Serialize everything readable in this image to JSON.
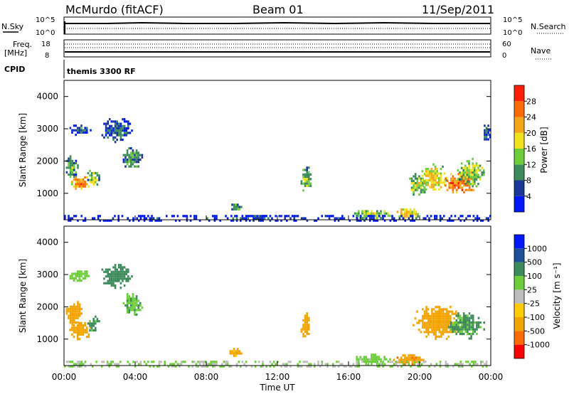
{
  "header": {
    "station": "McMurdo (fitACF)",
    "beam": "Beam 01",
    "date": "11/Sep/2011"
  },
  "panels": {
    "nsky": {
      "left_label": "N.Sky",
      "right_label": "N.Search",
      "top_tick": "10^5",
      "bottom_tick": "10^0"
    },
    "freq": {
      "left_label_1": "Freq.",
      "left_label_2": "[MHz]",
      "right_label": "Nave",
      "left_ticks": [
        "18",
        "8"
      ],
      "right_ticks": [
        "60",
        "0"
      ]
    },
    "cpid": {
      "left_label": "CPID",
      "mode": "themis 3300 RF"
    }
  },
  "colors": {
    "power": [
      "#0018ff",
      "#19379a",
      "#3b8c5a",
      "#6ccf39",
      "#f1e31a",
      "#f5a516",
      "#ff6a00",
      "#ff1e00"
    ],
    "velocity": [
      "#ff0000",
      "#ff6a00",
      "#f4a400",
      "#ffcc00",
      "#bdbdbd",
      "#6ccf39",
      "#3b8c5a",
      "#1c4f9a",
      "#0018ff"
    ]
  },
  "colorbars": {
    "power": {
      "label": "Power [dB]",
      "ticks": [
        "4",
        "8",
        "12",
        "16",
        "20",
        "24",
        "28"
      ]
    },
    "velocity": {
      "label": "Velocity [m s⁻¹]",
      "ticks": [
        "-1000",
        "-500",
        "-100",
        "-25",
        "25",
        "100",
        "500",
        "1000"
      ]
    }
  },
  "chart_data": [
    {
      "type": "heatmap",
      "quantity": "power",
      "ylabel": "Slant Range [km]",
      "yticks": [
        "1000",
        "2000",
        "3000",
        "4000"
      ],
      "ylim": [
        180,
        4500
      ],
      "xlim": [
        0,
        24
      ],
      "blobs": [
        {
          "t": [
            0.0,
            0.8
          ],
          "r": [
            1400,
            2250
          ],
          "v": 12
        },
        {
          "t": [
            0.3,
            1.5
          ],
          "r": [
            1100,
            1600
          ],
          "v": 24
        },
        {
          "t": [
            1.2,
            2.0
          ],
          "r": [
            1200,
            1800
          ],
          "v": 16
        },
        {
          "t": [
            0.2,
            1.5
          ],
          "r": [
            2800,
            3200
          ],
          "v": 8
        },
        {
          "t": [
            2.0,
            3.8
          ],
          "r": [
            2600,
            3400
          ],
          "v": 8
        },
        {
          "t": [
            3.2,
            4.4
          ],
          "r": [
            1700,
            2500
          ],
          "v": 12
        },
        {
          "t": [
            9.2,
            10.0
          ],
          "r": [
            450,
            750
          ],
          "v": 12
        },
        {
          "t": [
            10.5,
            11.5
          ],
          "r": [
            200,
            400
          ],
          "v": 8
        },
        {
          "t": [
            13.2,
            13.9
          ],
          "r": [
            1000,
            1900
          ],
          "v": 14
        },
        {
          "t": [
            16.0,
            18.5
          ],
          "r": [
            200,
            550
          ],
          "v": 16
        },
        {
          "t": [
            18.5,
            20.0
          ],
          "r": [
            200,
            600
          ],
          "v": 20
        },
        {
          "t": [
            19.3,
            20.5
          ],
          "r": [
            900,
            1700
          ],
          "v": 16
        },
        {
          "t": [
            20.0,
            21.5
          ],
          "r": [
            1000,
            2000
          ],
          "v": 20
        },
        {
          "t": [
            21.2,
            23.2
          ],
          "r": [
            1000,
            1700
          ],
          "v": 26
        },
        {
          "t": [
            22.0,
            23.7
          ],
          "r": [
            1200,
            2100
          ],
          "v": 16
        },
        {
          "t": [
            23.5,
            24.0
          ],
          "r": [
            2600,
            3200
          ],
          "v": 8
        },
        {
          "t": [
            0.0,
            24.0
          ],
          "r": [
            180,
            330
          ],
          "v": 6
        }
      ]
    },
    {
      "type": "heatmap",
      "quantity": "velocity",
      "xlabel": "Time UT",
      "xticks": [
        "00:00",
        "04:00",
        "08:00",
        "12:00",
        "16:00",
        "20:00",
        "00:00"
      ],
      "ylabel": "Slant Range [km]",
      "yticks": [
        "1000",
        "2000",
        "3000",
        "4000"
      ],
      "ylim": [
        180,
        4500
      ],
      "xlim": [
        0,
        24
      ],
      "blobs": [
        {
          "t": [
            0.0,
            1.0
          ],
          "r": [
            1400,
            2250
          ],
          "v": -300
        },
        {
          "t": [
            0.3,
            1.6
          ],
          "r": [
            1000,
            1600
          ],
          "v": -300
        },
        {
          "t": [
            1.2,
            2.0
          ],
          "r": [
            1200,
            1800
          ],
          "v": 150
        },
        {
          "t": [
            0.2,
            1.5
          ],
          "r": [
            2800,
            3200
          ],
          "v": 60
        },
        {
          "t": [
            2.0,
            3.8
          ],
          "r": [
            2600,
            3400
          ],
          "v": 200
        },
        {
          "t": [
            3.2,
            4.4
          ],
          "r": [
            1700,
            2500
          ],
          "v": 80
        },
        {
          "t": [
            9.2,
            10.0
          ],
          "r": [
            450,
            800
          ],
          "v": -150
        },
        {
          "t": [
            13.2,
            13.9
          ],
          "r": [
            1000,
            1900
          ],
          "v": -200
        },
        {
          "t": [
            16.0,
            18.5
          ],
          "r": [
            200,
            550
          ],
          "v": 50
        },
        {
          "t": [
            18.5,
            20.2
          ],
          "r": [
            200,
            600
          ],
          "v": -400
        },
        {
          "t": [
            19.5,
            22.5
          ],
          "r": [
            1000,
            2100
          ],
          "v": -300
        },
        {
          "t": [
            21.5,
            23.7
          ],
          "r": [
            1000,
            1900
          ],
          "v": 150
        },
        {
          "t": [
            0.0,
            24.0
          ],
          "r": [
            180,
            330
          ],
          "v": 30
        }
      ]
    }
  ]
}
